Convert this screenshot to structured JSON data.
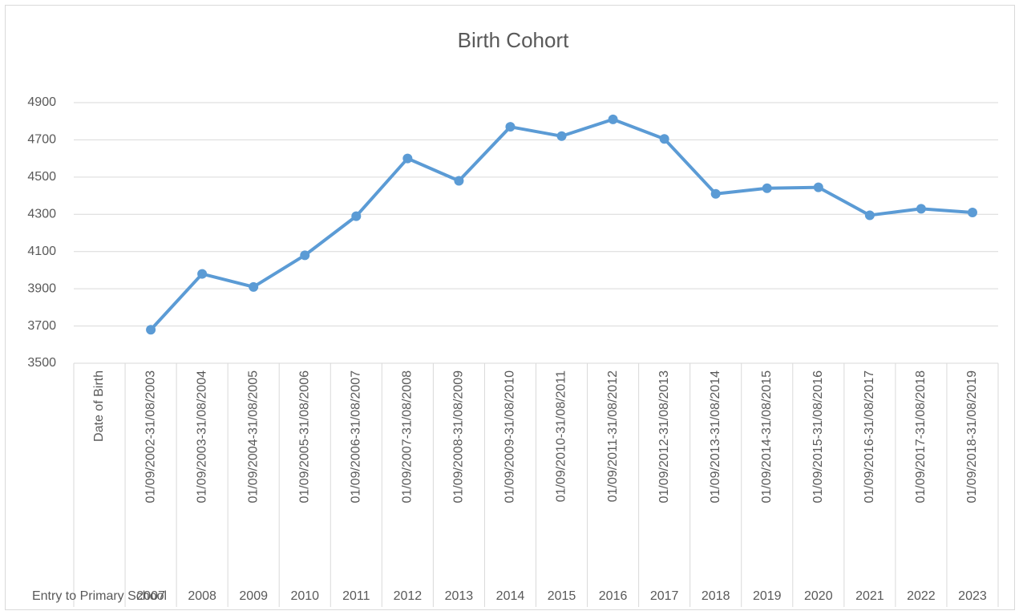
{
  "chart_data": {
    "type": "line",
    "title": "Birth Cohort",
    "categories": [
      "Date of Birth",
      "01/09/2002-31/08/2003",
      "01/09/2003-31/08/2004",
      "01/09/2004-31/08/2005",
      "01/09/2005-31/08/2006",
      "01/09/2006-31/08/2007",
      "01/09/2007-31/08/2008",
      "01/09/2008-31/08/2009",
      "01/09/2009-31/08/2010",
      "01/09/2010-31/08/2011",
      "01/09/2011-31/08/2012",
      "01/09/2012-31/08/2013",
      "01/09/2013-31/08/2014",
      "01/09/2014-31/08/2015",
      "01/09/2015-31/08/2016",
      "01/09/2016-31/08/2017",
      "01/09/2017-31/08/2018",
      "01/09/2018-31/08/2019"
    ],
    "category_groups": [
      "Entry to Primary School",
      "2007",
      "2008",
      "2009",
      "2010",
      "2011",
      "2012",
      "2013",
      "2014",
      "2015",
      "2016",
      "2017",
      "2018",
      "2019",
      "2020",
      "2021",
      "2022",
      "2023"
    ],
    "values": [
      null,
      3680,
      3980,
      3910,
      4080,
      4290,
      4600,
      4480,
      4770,
      4720,
      4810,
      4705,
      4410,
      4440,
      4445,
      4295,
      4330,
      4310
    ],
    "color": "#5b9bd5",
    "ylim": [
      3500,
      4900
    ],
    "yticks": [
      3500,
      3700,
      3900,
      4100,
      4300,
      4500,
      4700,
      4900
    ],
    "grid": true
  }
}
